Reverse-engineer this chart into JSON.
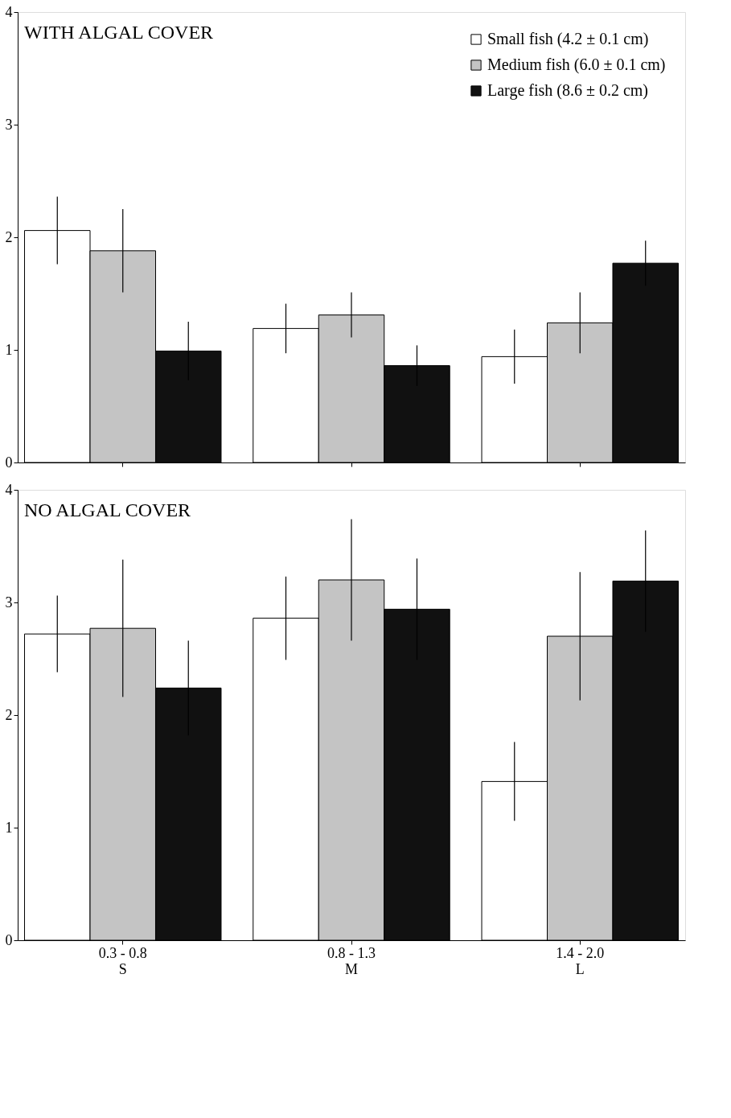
{
  "chart_data": [
    {
      "type": "bar",
      "title": "WITH ALGAL COVER",
      "categories": [
        null,
        null,
        null
      ],
      "ylim": [
        0,
        4
      ],
      "yticks": [
        0,
        1,
        2,
        3,
        4
      ],
      "tick_labels": "y",
      "legend": "top right",
      "grid": false,
      "series": [
        {
          "name": "Small fish (4.2 ± 0.1 cm)",
          "color": "#ffffff",
          "values": [
            2.06,
            1.19,
            0.94
          ],
          "errors": [
            0.3,
            0.22,
            0.24
          ]
        },
        {
          "name": "Medium fish (6.0 ± 0.1 cm)",
          "color": "#c4c4c4",
          "values": [
            1.88,
            1.31,
            1.24
          ],
          "errors": [
            0.37,
            0.2,
            0.27
          ]
        },
        {
          "name": "Large fish (8.6 ± 0.2 cm)",
          "color": "#111111",
          "values": [
            0.99,
            0.86,
            1.77
          ],
          "errors": [
            0.26,
            0.18,
            0.2
          ]
        }
      ]
    },
    {
      "type": "bar",
      "title": "NO ALGAL COVER",
      "categories": [
        "0.3 - 0.8\nS",
        "0.8 - 1.3\nM",
        "1.4 - 2.0\nL"
      ],
      "ylim": [
        0,
        4
      ],
      "yticks": [
        0,
        1,
        2,
        3,
        4
      ],
      "legend": false,
      "grid": false,
      "series": [
        {
          "color": "#ffffff",
          "values": [
            2.72,
            2.86,
            1.41
          ],
          "errors": [
            0.34,
            0.37,
            0.35
          ]
        },
        {
          "color": "#c4c4c4",
          "values": [
            2.77,
            3.2,
            2.7
          ],
          "errors": [
            0.61,
            0.54,
            0.57
          ]
        },
        {
          "color": "#111111",
          "values": [
            2.24,
            2.94,
            3.19
          ],
          "errors": [
            0.42,
            0.45,
            0.45
          ]
        }
      ]
    }
  ]
}
